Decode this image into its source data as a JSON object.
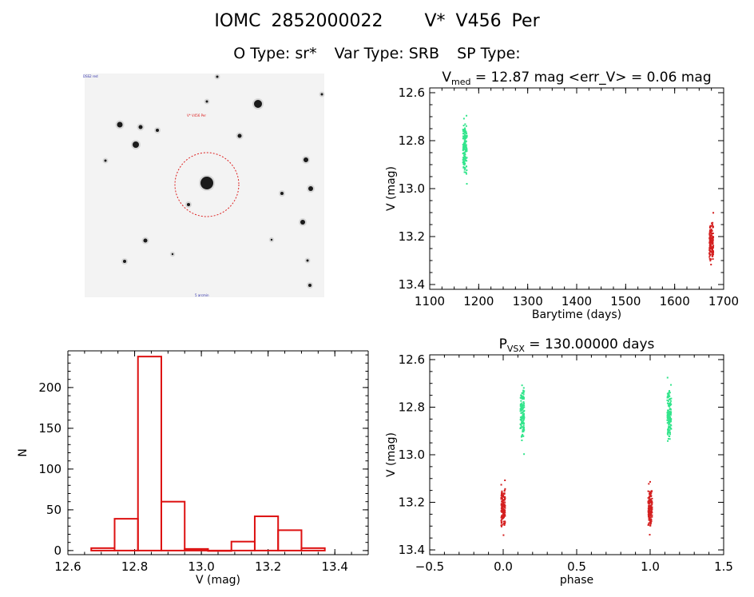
{
  "header": {
    "object_id": "IOMC 2852000022",
    "object_name": "V* V456 Per",
    "o_type": "O Type: sr*",
    "var_type": "Var Type: SRB",
    "sp_type": "SP Type:"
  },
  "colors": {
    "green": "#33e58c",
    "red": "#d42020",
    "hist": "#dd1111"
  },
  "image_panel": {
    "tag_top_left": "DSS2 red",
    "tag_center": "V* V456 Per",
    "tag_bottom": "5 arcmin"
  },
  "chart_data": [
    {
      "id": "lightcurve",
      "type": "scatter",
      "title_main": "V",
      "title_sub": "med",
      "title_rest": " = 12.87 mag <err_V> = 0.06 mag",
      "xlabel": "Barytime (days)",
      "ylabel": "V (mag)",
      "xlim": [
        1100,
        1700
      ],
      "ylim": [
        13.42,
        12.58
      ],
      "xticks": [
        "1100",
        "1200",
        "1300",
        "1400",
        "1500",
        "1600",
        "1700"
      ],
      "yticks": [
        "12.6",
        "12.8",
        "13.0",
        "13.2",
        "13.4"
      ],
      "series": [
        {
          "color": "green",
          "x": 1172,
          "ymin": 12.67,
          "ymax": 13.0
        },
        {
          "color": "red",
          "x": 1675,
          "ymin": 13.1,
          "ymax": 13.35
        }
      ]
    },
    {
      "id": "histogram",
      "type": "bar",
      "xlabel": "V (mag)",
      "ylabel": "N",
      "xlim": [
        12.6,
        13.5
      ],
      "ylim": [
        -5,
        245
      ],
      "xticks": [
        "12.6",
        "12.8",
        "13.0",
        "13.2",
        "13.4"
      ],
      "yticks": [
        "0",
        "50",
        "100",
        "150",
        "200"
      ],
      "bins": [
        {
          "x0": 12.67,
          "x1": 12.74,
          "n": 3
        },
        {
          "x0": 12.74,
          "x1": 12.81,
          "n": 39
        },
        {
          "x0": 12.81,
          "x1": 12.88,
          "n": 238
        },
        {
          "x0": 12.88,
          "x1": 12.95,
          "n": 60
        },
        {
          "x0": 12.95,
          "x1": 13.02,
          "n": 2
        },
        {
          "x0": 13.02,
          "x1": 13.09,
          "n": 0
        },
        {
          "x0": 13.09,
          "x1": 13.16,
          "n": 11
        },
        {
          "x0": 13.16,
          "x1": 13.23,
          "n": 42
        },
        {
          "x0": 13.23,
          "x1": 13.3,
          "n": 25
        },
        {
          "x0": 13.3,
          "x1": 13.37,
          "n": 3
        }
      ]
    },
    {
      "id": "phased",
      "type": "scatter",
      "title_main": "P",
      "title_sub": "VSX",
      "title_rest": " = 130.00000 days",
      "xlabel": "phase",
      "ylabel": "V (mag)",
      "xlim": [
        -0.5,
        1.5
      ],
      "ylim": [
        13.42,
        12.58
      ],
      "xticks": [
        "−0.5",
        "0.0",
        "0.5",
        "1.0",
        "1.5"
      ],
      "yticks": [
        "12.6",
        "12.8",
        "13.0",
        "13.2",
        "13.4"
      ],
      "series": [
        {
          "color": "red",
          "x": 0.0,
          "ymin": 13.1,
          "ymax": 13.35
        },
        {
          "color": "green",
          "x": 0.13,
          "ymin": 12.67,
          "ymax": 13.0
        },
        {
          "color": "red",
          "x": 1.0,
          "ymin": 13.1,
          "ymax": 13.35
        },
        {
          "color": "green",
          "x": 1.13,
          "ymin": 12.67,
          "ymax": 13.0
        }
      ]
    }
  ]
}
